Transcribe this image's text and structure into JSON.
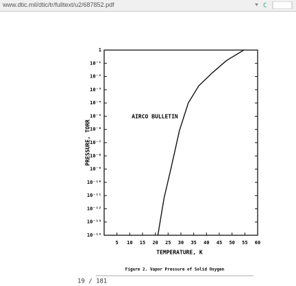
{
  "browser": {
    "url": "www.dtic.mil/dtic/tr/fulltext/u2/687852.pdf"
  },
  "pdf": {
    "page_indicator": "19 / 181"
  },
  "chart_data": {
    "type": "line",
    "caption": "Figure 2.   Vapor Pressure of Solid Oxygen",
    "annotation": "AIRCO BULLETIN",
    "x_label": "TEMPERATURE, K",
    "y_label": "PRESSURE, TORR",
    "x": [
      21.0,
      23.4,
      26.2,
      29.4,
      32.9,
      37.0,
      42.4,
      47.8,
      54.6
    ],
    "values": [
      1e-14,
      6.3e-12,
      1.3e-09,
      7.9e-07,
      0.0001,
      0.002,
      0.02,
      0.16,
      1
    ],
    "color": "#111111",
    "xlim": [
      0,
      60
    ],
    "xticks": [
      5,
      10,
      15,
      20,
      25,
      30,
      35,
      40,
      45,
      50,
      55,
      60
    ],
    "ylim": [
      1e-14,
      1
    ],
    "log_y": true,
    "yticks": [
      1,
      {
        "value": 0.1,
        "label": "10⁻¹"
      },
      {
        "value": 0.01,
        "label": "10⁻²"
      },
      {
        "value": 0.001,
        "label": "10⁻³"
      },
      {
        "value": 0.0001,
        "label": "10⁻⁴"
      },
      {
        "value": 1e-05,
        "label": "10⁻⁵"
      },
      {
        "value": 1e-06,
        "label": "10⁻⁶"
      },
      {
        "value": 1e-07,
        "label": "10⁻⁷"
      },
      {
        "value": 1e-08,
        "label": "10⁻⁸"
      },
      {
        "value": 1e-09,
        "label": "10⁻⁹"
      },
      {
        "value": 1e-10,
        "label": "10⁻¹⁰"
      },
      {
        "value": 1e-11,
        "label": "10⁻¹¹"
      },
      {
        "value": 1e-12,
        "label": "10⁻¹²"
      },
      {
        "value": 1e-13,
        "label": "10⁻¹³"
      },
      {
        "value": 1e-14,
        "label": "10⁻¹⁴"
      }
    ]
  }
}
